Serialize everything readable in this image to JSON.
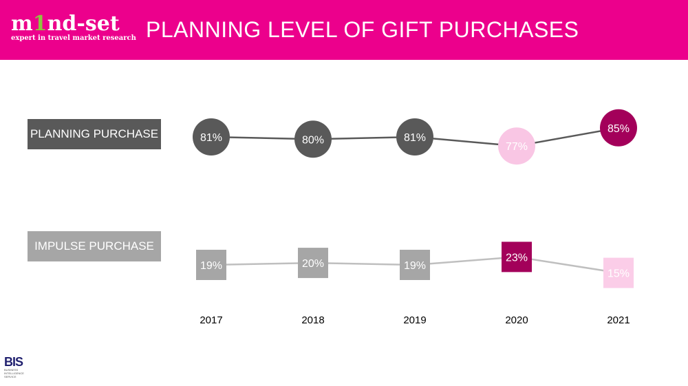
{
  "header": {
    "logo_main": "m1nd-set",
    "logo_tagline": "expert in travel market research",
    "title": "PLANNING LEVEL OF GIFT PURCHASES"
  },
  "footer": {
    "logo": "BIS",
    "logo_sub": "BUSINESS INTELLIGENCE SERVICE"
  },
  "chart_data": {
    "type": "line",
    "categories": [
      "2017",
      "2018",
      "2019",
      "2020",
      "2021"
    ],
    "series": [
      {
        "name": "PLANNING PURCHASE",
        "values": [
          81,
          80,
          81,
          77,
          85
        ],
        "labels": [
          "81%",
          "80%",
          "81%",
          "77%",
          "85%"
        ],
        "marker": "circle",
        "line_color": "#595959",
        "colors": [
          "#595959",
          "#595959",
          "#595959",
          "#F9C6E4",
          "#A3005A"
        ]
      },
      {
        "name": "IMPULSE PURCHASE",
        "values": [
          19,
          20,
          19,
          23,
          15
        ],
        "labels": [
          "19%",
          "20%",
          "19%",
          "23%",
          "15%"
        ],
        "marker": "square",
        "line_color": "#BFBFBF",
        "colors": [
          "#A6A6A6",
          "#A6A6A6",
          "#A6A6A6",
          "#A3005A",
          "#FBCDE8"
        ]
      }
    ],
    "accent": "#EC008C"
  }
}
